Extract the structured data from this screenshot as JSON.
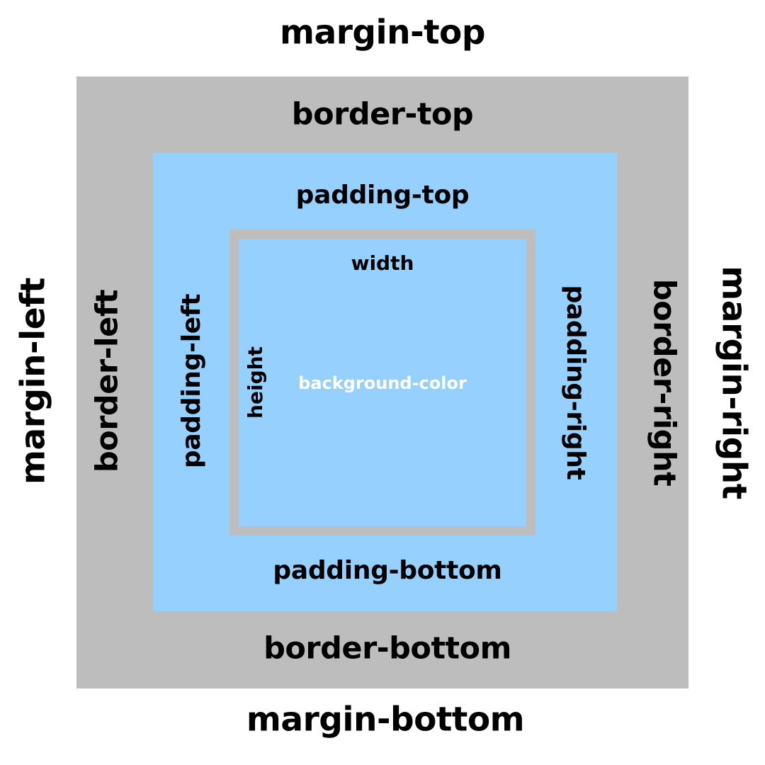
{
  "labels": {
    "margin_top": "margin-top",
    "margin_bottom": "margin-bottom",
    "margin_left": "margin-left",
    "margin_right": "margin-right",
    "border_top": "border-top",
    "border_bottom": "border-bottom",
    "border_left": "border-left",
    "border_right": "border-right",
    "padding_top": "padding-top",
    "padding_bottom": "padding-bottom",
    "padding_left": "padding-left",
    "padding_right": "padding-right",
    "width": "width",
    "height": "height",
    "background_color": "background-color"
  },
  "colors": {
    "page_background": "#ffffff",
    "border_fill": "#bdbdbd",
    "padding_fill": "#96d0ff",
    "content_frame": "#bdbdbd",
    "content_fill": "#96d0ff",
    "text": "#000000",
    "background_color_text": "#ffffff"
  }
}
